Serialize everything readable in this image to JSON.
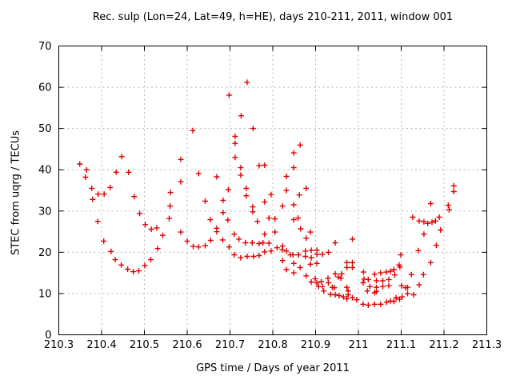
{
  "title": "Rec. sulp (Lon=24, Lat=49, h=HE), days 210-211, 2011, window 001",
  "colors": {
    "marker": "#e00000",
    "grid": "#b8b8b8",
    "axis": "#000000",
    "background": "#ffffff"
  },
  "chart_data": {
    "type": "scatter",
    "title": "Rec. sulp (Lon=24, Lat=49, h=HE), days 210-211, 2011, window 001",
    "xlabel": "GPS time / Days of year 2011",
    "ylabel": "STEC from uqrg / TECUs",
    "xlim": [
      210.3,
      211.3
    ],
    "ylim": [
      0,
      70
    ],
    "xticks": [
      210.3,
      210.4,
      210.5,
      210.6,
      210.7,
      210.8,
      210.9,
      211,
      211.1,
      211.2,
      211.3
    ],
    "xtick_labels": [
      "210.3",
      "210.4",
      "210.5",
      "210.6",
      "210.7",
      "210.8",
      "210.9",
      "211",
      "211.1",
      "211.2",
      "211.3"
    ],
    "yticks": [
      0,
      10,
      20,
      30,
      40,
      50,
      60,
      70
    ],
    "ytick_labels": [
      "0",
      "10",
      "20",
      "30",
      "40",
      "50",
      "60",
      "70"
    ],
    "grid": true,
    "grid_style": "dotted",
    "legend": "none",
    "marker": "plus",
    "marker_color": "#e00000",
    "points": [
      [
        210.349,
        41.4
      ],
      [
        210.362,
        38.2
      ],
      [
        210.365,
        40.0
      ],
      [
        210.377,
        35.5
      ],
      [
        210.379,
        32.8
      ],
      [
        210.392,
        34.1
      ],
      [
        210.391,
        27.5
      ],
      [
        210.405,
        22.7
      ],
      [
        210.406,
        34.1
      ],
      [
        210.42,
        35.7
      ],
      [
        210.422,
        20.2
      ],
      [
        210.432,
        18.2
      ],
      [
        210.434,
        39.4
      ],
      [
        210.446,
        16.9
      ],
      [
        210.447,
        43.2
      ],
      [
        210.461,
        15.9
      ],
      [
        210.463,
        39.4
      ],
      [
        210.474,
        15.3
      ],
      [
        210.476,
        33.5
      ],
      [
        210.487,
        15.5
      ],
      [
        210.489,
        29.4
      ],
      [
        210.501,
        16.8
      ],
      [
        210.502,
        26.7
      ],
      [
        210.515,
        18.2
      ],
      [
        210.516,
        25.6
      ],
      [
        210.529,
        25.9
      ],
      [
        210.531,
        20.9
      ],
      [
        210.543,
        24.1
      ],
      [
        210.558,
        28.2
      ],
      [
        210.56,
        31.2
      ],
      [
        210.561,
        34.5
      ],
      [
        210.585,
        42.5
      ],
      [
        210.585,
        37.1
      ],
      [
        210.585,
        24.9
      ],
      [
        210.6,
        22.7
      ],
      [
        210.613,
        49.5
      ],
      [
        210.614,
        21.4
      ],
      [
        210.627,
        39.1
      ],
      [
        210.627,
        21.3
      ],
      [
        210.642,
        32.4
      ],
      [
        210.642,
        21.6
      ],
      [
        210.654,
        27.9
      ],
      [
        210.655,
        22.9
      ],
      [
        210.669,
        38.3
      ],
      [
        210.669,
        25.8
      ],
      [
        210.669,
        25.0
      ],
      [
        210.683,
        23.0
      ],
      [
        210.684,
        32.6
      ],
      [
        210.684,
        29.6
      ],
      [
        210.695,
        27.8
      ],
      [
        210.696,
        35.2
      ],
      [
        210.698,
        58.1
      ],
      [
        210.698,
        21.3
      ],
      [
        210.71,
        24.4
      ],
      [
        210.71,
        19.4
      ],
      [
        210.712,
        48.1
      ],
      [
        210.712,
        46.4
      ],
      [
        210.712,
        43.0
      ],
      [
        210.721,
        23.2
      ],
      [
        210.725,
        40.5
      ],
      [
        210.725,
        38.7
      ],
      [
        210.725,
        18.7
      ],
      [
        210.726,
        53.1
      ],
      [
        210.736,
        22.3
      ],
      [
        210.738,
        35.5
      ],
      [
        210.738,
        33.7
      ],
      [
        210.74,
        61.2
      ],
      [
        210.74,
        19.0
      ],
      [
        210.752,
        22.3
      ],
      [
        210.753,
        31.0
      ],
      [
        210.753,
        29.8
      ],
      [
        210.754,
        50.0
      ],
      [
        210.755,
        19.0
      ],
      [
        210.764,
        27.5
      ],
      [
        210.768,
        41.0
      ],
      [
        210.768,
        22.1
      ],
      [
        210.768,
        19.2
      ],
      [
        210.777,
        22.3
      ],
      [
        210.781,
        41.1
      ],
      [
        210.781,
        32.2
      ],
      [
        210.781,
        24.4
      ],
      [
        210.781,
        20.1
      ],
      [
        210.791,
        28.3
      ],
      [
        210.791,
        22.2
      ],
      [
        210.796,
        34.0
      ],
      [
        210.796,
        20.3
      ],
      [
        210.805,
        28.1
      ],
      [
        210.805,
        24.9
      ],
      [
        210.81,
        21.1
      ],
      [
        210.822,
        20.6
      ],
      [
        210.823,
        31.2
      ],
      [
        210.823,
        21.5
      ],
      [
        210.823,
        18.0
      ],
      [
        210.832,
        38.4
      ],
      [
        210.832,
        35.0
      ],
      [
        210.832,
        20.3
      ],
      [
        210.832,
        15.8
      ],
      [
        210.841,
        19.4
      ],
      [
        210.847,
        19.4
      ],
      [
        210.849,
        44.1
      ],
      [
        210.849,
        40.5
      ],
      [
        210.849,
        31.5
      ],
      [
        210.849,
        27.9
      ],
      [
        210.849,
        17.3
      ],
      [
        210.849,
        15.0
      ],
      [
        210.859,
        28.3
      ],
      [
        210.86,
        19.4
      ],
      [
        210.862,
        33.9
      ],
      [
        210.864,
        46.0
      ],
      [
        210.864,
        16.3
      ],
      [
        210.865,
        25.7
      ],
      [
        210.876,
        20.3
      ],
      [
        210.876,
        19.0
      ],
      [
        210.878,
        35.5
      ],
      [
        210.878,
        23.4
      ],
      [
        210.878,
        14.3
      ],
      [
        210.888,
        24.9
      ],
      [
        210.888,
        17.1
      ],
      [
        210.89,
        20.5
      ],
      [
        210.89,
        18.7
      ],
      [
        210.89,
        12.8
      ],
      [
        210.899,
        13.6
      ],
      [
        210.903,
        20.5
      ],
      [
        210.903,
        19.5
      ],
      [
        210.903,
        17.3
      ],
      [
        210.903,
        12.6
      ],
      [
        210.907,
        11.7
      ],
      [
        210.913,
        12.9
      ],
      [
        210.916,
        19.5
      ],
      [
        210.916,
        11.7
      ],
      [
        210.919,
        10.6
      ],
      [
        210.929,
        13.7
      ],
      [
        210.93,
        20.0
      ],
      [
        210.93,
        12.6
      ],
      [
        210.935,
        9.8
      ],
      [
        210.939,
        11.5
      ],
      [
        210.944,
        11.4
      ],
      [
        210.946,
        22.3
      ],
      [
        210.946,
        14.8
      ],
      [
        210.946,
        9.7
      ],
      [
        210.953,
        14.0
      ],
      [
        210.955,
        9.5
      ],
      [
        210.959,
        13.7
      ],
      [
        210.961,
        14.8
      ],
      [
        210.965,
        9.2
      ],
      [
        210.973,
        17.5
      ],
      [
        210.973,
        16.3
      ],
      [
        210.973,
        11.5
      ],
      [
        210.973,
        8.7
      ],
      [
        210.976,
        10.6
      ],
      [
        210.976,
        9.7
      ],
      [
        210.986,
        23.2
      ],
      [
        210.986,
        17.5
      ],
      [
        210.986,
        16.3
      ],
      [
        210.986,
        9.0
      ],
      [
        210.996,
        8.5
      ],
      [
        211.011,
        12.6
      ],
      [
        211.011,
        7.4
      ],
      [
        211.012,
        15.2
      ],
      [
        211.013,
        13.5
      ],
      [
        211.021,
        10.6
      ],
      [
        211.023,
        13.4
      ],
      [
        211.023,
        7.2
      ],
      [
        211.027,
        11.7
      ],
      [
        211.038,
        14.7
      ],
      [
        211.038,
        10.2
      ],
      [
        211.038,
        7.4
      ],
      [
        211.042,
        13.1
      ],
      [
        211.042,
        11.5
      ],
      [
        211.042,
        10.5
      ],
      [
        211.052,
        15.0
      ],
      [
        211.052,
        7.4
      ],
      [
        211.057,
        13.1
      ],
      [
        211.057,
        11.7
      ],
      [
        211.065,
        15.2
      ],
      [
        211.066,
        7.9
      ],
      [
        211.071,
        13.4
      ],
      [
        211.071,
        11.9
      ],
      [
        211.075,
        15.4
      ],
      [
        211.075,
        8.2
      ],
      [
        211.083,
        15.8
      ],
      [
        211.083,
        8.1
      ],
      [
        211.085,
        14.5
      ],
      [
        211.088,
        9.0
      ],
      [
        211.095,
        16.9
      ],
      [
        211.096,
        8.6
      ],
      [
        211.097,
        16.4
      ],
      [
        211.099,
        19.4
      ],
      [
        211.101,
        11.9
      ],
      [
        211.102,
        9.2
      ],
      [
        211.11,
        11.4
      ],
      [
        211.115,
        11.5
      ],
      [
        211.115,
        10.0
      ],
      [
        211.124,
        14.6
      ],
      [
        211.127,
        28.5
      ],
      [
        211.129,
        9.7
      ],
      [
        211.14,
        20.4
      ],
      [
        211.142,
        27.6
      ],
      [
        211.142,
        12.1
      ],
      [
        211.152,
        14.6
      ],
      [
        211.153,
        27.4
      ],
      [
        211.153,
        24.4
      ],
      [
        211.162,
        27.0
      ],
      [
        211.169,
        31.8
      ],
      [
        211.169,
        17.5
      ],
      [
        211.172,
        27.3
      ],
      [
        211.18,
        27.6
      ],
      [
        211.182,
        21.7
      ],
      [
        211.189,
        28.5
      ],
      [
        211.192,
        25.4
      ],
      [
        211.21,
        31.4
      ],
      [
        211.212,
        30.3
      ],
      [
        211.223,
        36.1
      ],
      [
        211.223,
        34.7
      ]
    ]
  }
}
